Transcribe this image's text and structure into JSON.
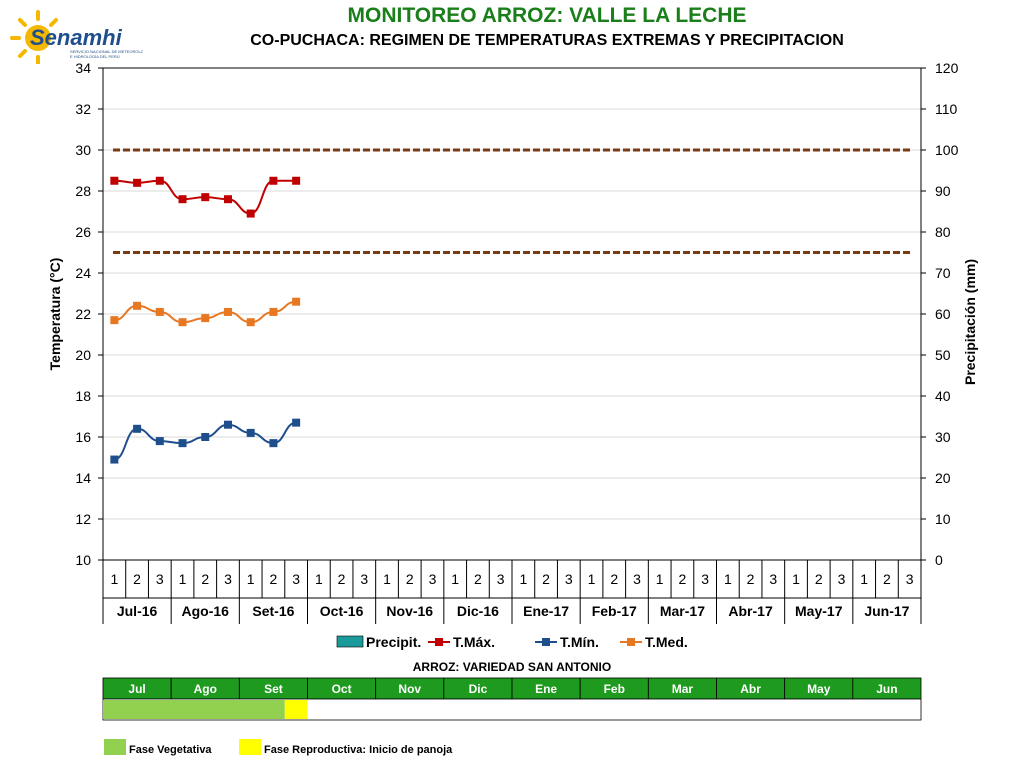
{
  "header": {
    "logo_text": "Senamhi",
    "logo_subtitle": "SERVICIO NACIONAL DE METEOROLOGÍA E HIDROLOGÍA DEL PERÚ",
    "title": "MONITOREO ARROZ: VALLE LA LECHE",
    "subtitle": "CO-PUCHACA: REGIMEN DE TEMPERATURAS EXTREMAS Y PRECIPITACION"
  },
  "chart_data": {
    "type": "line",
    "ylabel": "Temperatura (°C)",
    "y2label": "Precipitación  (mm)",
    "ylim": [
      10,
      34
    ],
    "y_ticks": [
      10,
      12,
      14,
      16,
      18,
      20,
      22,
      24,
      26,
      28,
      30,
      32,
      34
    ],
    "y2lim": [
      0,
      120
    ],
    "y2_ticks": [
      0,
      10,
      20,
      30,
      40,
      50,
      60,
      70,
      80,
      90,
      100,
      110,
      120
    ],
    "dekad_labels": [
      "1",
      "2",
      "3",
      "1",
      "2",
      "3",
      "1",
      "2",
      "3",
      "1",
      "2",
      "3",
      "1",
      "2",
      "3",
      "1",
      "2",
      "3",
      "1",
      "2",
      "3",
      "1",
      "2",
      "3",
      "1",
      "2",
      "3",
      "1",
      "2",
      "3",
      "1",
      "2",
      "3",
      "1",
      "2",
      "3"
    ],
    "months": [
      "Jul-16",
      "Ago-16",
      "Set-16",
      "Oct-16",
      "Nov-16",
      "Dic-16",
      "Ene-17",
      "Feb-17",
      "Mar-17",
      "Abr-17",
      "May-17",
      "Jun-17"
    ],
    "series": [
      {
        "name": "Precipit.",
        "color": "#1a9a9a",
        "type": "bar",
        "values": []
      },
      {
        "name": "T.Máx.",
        "color": "#c00000",
        "values": [
          28.5,
          28.4,
          28.5,
          27.6,
          27.7,
          27.6,
          26.9,
          28.5,
          28.5
        ]
      },
      {
        "name": "T.Mín.",
        "color": "#1f4e8c",
        "values": [
          14.9,
          16.4,
          15.8,
          15.7,
          16.0,
          16.6,
          16.2,
          15.7,
          16.7
        ]
      },
      {
        "name": "T.Med.",
        "color": "#e87722",
        "values": [
          21.7,
          22.4,
          22.1,
          21.6,
          21.8,
          22.1,
          21.6,
          22.1,
          22.6
        ]
      }
    ],
    "threshold_lines": [
      {
        "value": 30,
        "color": "#7a3a12",
        "style": "dashed"
      },
      {
        "value": 25,
        "color": "#7a3a12",
        "style": "dashed"
      }
    ],
    "grid": true,
    "legend_position": "bottom"
  },
  "phenology": {
    "title": "ARROZ: VARIEDAD SAN ANTONIO",
    "months": [
      "Jul",
      "Ago",
      "Set",
      "Oct",
      "Nov",
      "Dic",
      "Ene",
      "Feb",
      "Mar",
      "Abr",
      "May",
      "Jun"
    ],
    "header_color": "#1e9a1e",
    "phases": [
      {
        "label": "Fase Vegetativa",
        "color": "#92d050",
        "dekads": 8
      },
      {
        "label": "Fase Reproductiva: Inicio de panoja",
        "color": "#ffff00",
        "dekads": 1
      }
    ]
  }
}
